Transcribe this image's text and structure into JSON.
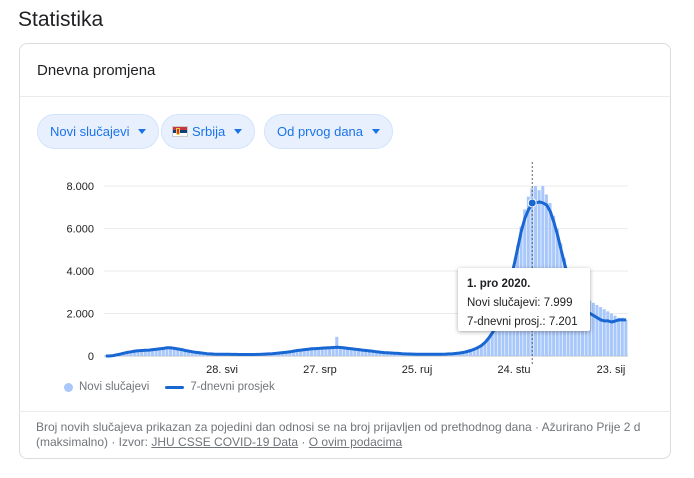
{
  "page": {
    "title": "Statistika"
  },
  "card": {
    "title": "Dnevna promjena"
  },
  "filters": {
    "metric": {
      "label": "Novi slučajevi"
    },
    "country": {
      "label": "Srbija",
      "flag_icon": "serbia-flag-icon"
    },
    "range": {
      "label": "Od prvog dana"
    }
  },
  "colors": {
    "accent": "#1a73e8",
    "bars": "#a8c7fa",
    "line": "#1967d2",
    "chip_bg": "#e8f0fe"
  },
  "chart_data": {
    "type": "bar",
    "y_ticks": [
      "8.000",
      "6.000",
      "4.000",
      "2.000",
      "0"
    ],
    "ylim": [
      0,
      8500
    ],
    "x_ticks": [
      "28. svi",
      "27. srp",
      "25. ruj",
      "24. stu",
      "23. sij"
    ],
    "grid": true,
    "legend_position": "bottom-left",
    "series": [
      {
        "name": "Novi slučajevi",
        "kind": "bar",
        "values": [
          0,
          0,
          20,
          60,
          100,
          140,
          180,
          220,
          250,
          260,
          270,
          280,
          290,
          310,
          330,
          350,
          380,
          420,
          460,
          420,
          380,
          330,
          290,
          250,
          220,
          190,
          160,
          140,
          120,
          110,
          100,
          90,
          80,
          80,
          80,
          80,
          80,
          70,
          70,
          70,
          70,
          70,
          70,
          80,
          90,
          100,
          110,
          130,
          150,
          170,
          190,
          220,
          250,
          280,
          300,
          320,
          340,
          350,
          360,
          370,
          380,
          390,
          400,
          460,
          900,
          380,
          360,
          350,
          340,
          320,
          300,
          280,
          260,
          240,
          220,
          200,
          180,
          160,
          150,
          140,
          130,
          120,
          110,
          100,
          90,
          80,
          80,
          80,
          80,
          80,
          80,
          80,
          80,
          80,
          90,
          100,
          110,
          120,
          140,
          170,
          210,
          260,
          320,
          400,
          500,
          650,
          850,
          1100,
          1400,
          1800,
          2300,
          2900,
          3600,
          4300,
          5200,
          6100,
          6900,
          7500,
          7900,
          8000,
          7800,
          7999,
          7600,
          7200,
          6600,
          6000,
          5300,
          4600,
          4000,
          3500,
          3200,
          3000,
          2900,
          2700,
          2600,
          2500,
          2400,
          2300,
          2200,
          2100,
          2000,
          1900,
          1800,
          1800,
          1700
        ]
      },
      {
        "name": "7-dnevni prosjek",
        "kind": "line",
        "values": [
          0,
          0,
          20,
          50,
          90,
          130,
          170,
          200,
          230,
          250,
          260,
          270,
          280,
          300,
          320,
          340,
          360,
          390,
          380,
          360,
          330,
          300,
          260,
          230,
          200,
          170,
          150,
          130,
          110,
          100,
          90,
          85,
          80,
          80,
          80,
          75,
          75,
          70,
          70,
          70,
          70,
          70,
          75,
          80,
          90,
          100,
          110,
          120,
          140,
          160,
          180,
          200,
          230,
          260,
          280,
          300,
          320,
          340,
          350,
          360,
          370,
          380,
          390,
          400,
          410,
          400,
          380,
          360,
          340,
          320,
          300,
          280,
          260,
          240,
          220,
          200,
          180,
          160,
          150,
          140,
          130,
          120,
          110,
          100,
          95,
          90,
          85,
          85,
          85,
          85,
          85,
          85,
          85,
          85,
          90,
          100,
          110,
          120,
          140,
          170,
          210,
          260,
          320,
          400,
          500,
          650,
          850,
          1100,
          1400,
          1800,
          2300,
          2900,
          3600,
          4300,
          5100,
          5900,
          6500,
          6900,
          7150,
          7201,
          7250,
          7200,
          7100,
          6800,
          6300,
          5700,
          5000,
          4300,
          3700,
          3200,
          2800,
          2500,
          2300,
          2100,
          2000,
          1900,
          1800,
          1700,
          1650,
          1650,
          1600,
          1650,
          1700,
          1700,
          1700
        ]
      }
    ],
    "tooltip": {
      "date": "1. pro 2020.",
      "cases_label": "Novi slučajevi: 7.999",
      "avg_label": "7-dnevni prosj.: 7.201"
    }
  },
  "footer": {
    "text": "Broj novih slučajeva prikazan za pojedini dan odnosi se na broj prijavljen od prethodnog dana · Ažurirano Prije 2 d (maksimalno)  ·  Izvor: ",
    "source_link": "JHU CSSE COVID-19 Data",
    "separator": " · ",
    "about_link": "O ovim podacima"
  }
}
